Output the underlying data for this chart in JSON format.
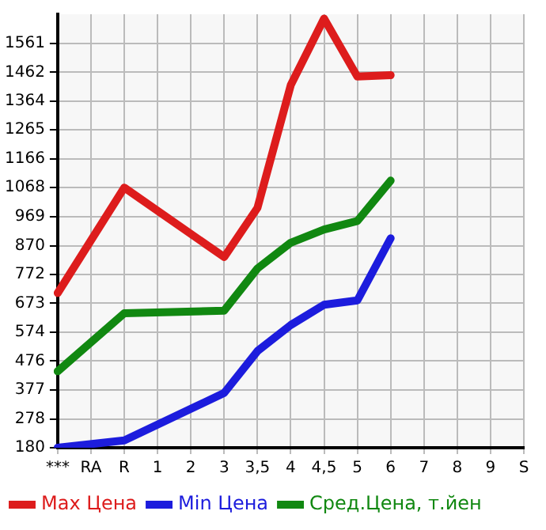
{
  "chart_data": {
    "type": "line",
    "categories": [
      "***",
      "RA",
      "R",
      "1",
      "2",
      "3",
      "3,5",
      "4",
      "4,5",
      "5",
      "6",
      "7",
      "8",
      "9",
      "S"
    ],
    "series": [
      {
        "name": "Max Цена",
        "color": "#dd1c1c",
        "values": [
          708,
          null,
          1068,
          null,
          null,
          831,
          999,
          1418,
          1645,
          1447,
          1452,
          null,
          null,
          null,
          null
        ]
      },
      {
        "name": "Min Цена",
        "color": "#1c1cdd",
        "values": [
          180,
          null,
          205,
          null,
          null,
          367,
          510,
          599,
          668,
          683,
          895,
          null,
          null,
          null,
          null
        ]
      },
      {
        "name": "Сред.Цена, т.йен",
        "color": "#118811",
        "values": [
          441,
          null,
          639,
          null,
          null,
          648,
          792,
          880,
          925,
          954,
          1092,
          null,
          null,
          null,
          null
        ]
      }
    ],
    "ylim": [
      180,
      1660
    ],
    "yticks": [
      180,
      278,
      377,
      476,
      574,
      673,
      772,
      870,
      969,
      1068,
      1166,
      1265,
      1364,
      1462,
      1561
    ],
    "grid": true,
    "legend": "bottom",
    "marker": "none",
    "line_style": "solid"
  }
}
